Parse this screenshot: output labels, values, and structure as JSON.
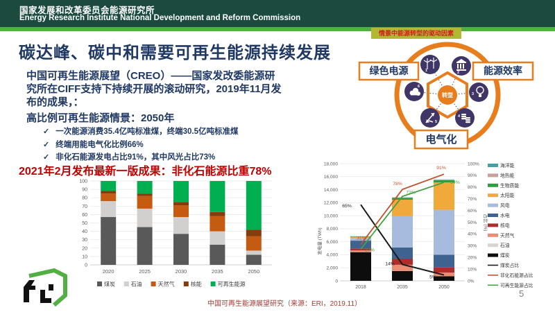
{
  "header": {
    "title_zh": "国家发展和改革委员会能源研究所",
    "title_en": "Energy Research Institute National Development and Reform Commission"
  },
  "slide": {
    "title": "碳达峰、碳中和需要可再生能源持续发展",
    "intro": "中国可再生能源展望（CREO）——国家发改委能源研\n究所在CIFF支持下持续开展的滚动研究，2019年11月发\n布的成果，：",
    "scenario_heading": "高比例可再生能源情景：2050年",
    "bullets": [
      "一次能源消费35.4亿吨标准煤，终端30.5亿吨标准煤",
      "终端用能电气化比例66%",
      "非化石能源发电占比91%，其中风光占比73%"
    ],
    "highlight": "2021年2月发布最新一版成果：非化石能源比重78%",
    "source": "中国可再生能源展望研究（来源：ERI，2019.11）",
    "page_number": "5"
  },
  "diagram": {
    "caption": "情景中能源转型的驱动因素",
    "center_label": "转型",
    "boxes": {
      "left": "绿色电源",
      "right": "能源效率",
      "bottom": "电气化"
    },
    "icons": [
      {
        "n": "1",
        "name": "wind-turbine-icon"
      },
      {
        "n": "2",
        "name": "bank-building-icon"
      },
      {
        "n": "3",
        "name": "lightbulb-icon"
      },
      {
        "n": "4",
        "name": "coins-icon"
      },
      {
        "n": "5",
        "name": "arrows-icon"
      },
      {
        "n": "6",
        "name": "cloud-icon"
      }
    ],
    "colors": {
      "ring": "#e87d1e",
      "node": "#3f3566",
      "box_border": "#e87d1e",
      "box_text": "#1f3864"
    }
  },
  "chart_data": [
    {
      "id": "primary-energy-mix",
      "type": "bar",
      "stacked": true,
      "title": "",
      "categories": [
        "2020",
        "2025",
        "2030",
        "2035",
        "2050"
      ],
      "series": [
        {
          "name": "煤炭",
          "color": "#595959",
          "values": [
            57,
            45,
            37,
            24,
            12
          ]
        },
        {
          "name": "石油",
          "color": "#d2d0ce",
          "values": [
            19,
            22,
            20,
            16,
            5
          ]
        },
        {
          "name": "天然气",
          "color": "#c55a11",
          "values": [
            9,
            15,
            14,
            18,
            17
          ]
        },
        {
          "name": "核能",
          "color": "#843c0c",
          "values": [
            3,
            3,
            4,
            5,
            8
          ]
        },
        {
          "name": "可再生能源",
          "color": "#00b050",
          "values": [
            12,
            15,
            25,
            37,
            58
          ]
        }
      ],
      "ylim": [
        0,
        100
      ],
      "ytick": 10,
      "grid": true,
      "legend_position": "bottom"
    },
    {
      "id": "power-generation-outlook",
      "type": "combo",
      "categories": [
        "2018",
        "2035",
        "2050"
      ],
      "ylabel_left": "发电量 (TWh)",
      "ylabel_right": "占比 (%)",
      "ylim_left": [
        0,
        18000
      ],
      "ytick_left": 2000,
      "ylim_right": [
        0,
        100
      ],
      "ytick_right": 10,
      "grid": true,
      "legend_position": "right",
      "bar_series": [
        {
          "name": "煤炭",
          "color": "#0d0d0d",
          "values": [
            4400,
            1500,
            700
          ]
        },
        {
          "name": "石油",
          "color": "#d8d4cf",
          "values": [
            20,
            10,
            5
          ]
        },
        {
          "name": "天然气",
          "color": "#e98d75",
          "values": [
            250,
            950,
            550
          ]
        },
        {
          "name": "核电",
          "color": "#b02e2a",
          "values": [
            300,
            950,
            800
          ]
        },
        {
          "name": "水电",
          "color": "#3f6391",
          "values": [
            1200,
            1700,
            1950
          ]
        },
        {
          "name": "风电",
          "color": "#a6bbdd",
          "values": [
            400,
            4800,
            6900
          ]
        },
        {
          "name": "太阳能",
          "color": "#f2a93b",
          "values": [
            180,
            2550,
            4200
          ]
        },
        {
          "name": "生物质能",
          "color": "#2e9e3f",
          "values": [
            80,
            300,
            350
          ]
        },
        {
          "name": "地热能",
          "color": "#c79f9d",
          "values": [
            5,
            50,
            80
          ]
        },
        {
          "name": "海洋能",
          "color": "#4d9ba4",
          "values": [
            3,
            20,
            40
          ]
        }
      ],
      "line_series": [
        {
          "name": "煤炭占比",
          "color": "#1a1a1a",
          "values": [
            65,
            14,
            5
          ],
          "labels": [
            "65%",
            "14%",
            "5%"
          ]
        },
        {
          "name": "非化石能源占比",
          "color": "#c0512e",
          "values": [
            31,
            78,
            91
          ],
          "labels": [
            "31%",
            "78%",
            "91%"
          ]
        },
        {
          "name": "可再生能源占比",
          "color": "#44a040",
          "values": [
            27,
            72,
            84
          ],
          "labels": [
            "27%",
            "72%",
            "84%"
          ]
        }
      ]
    }
  ]
}
